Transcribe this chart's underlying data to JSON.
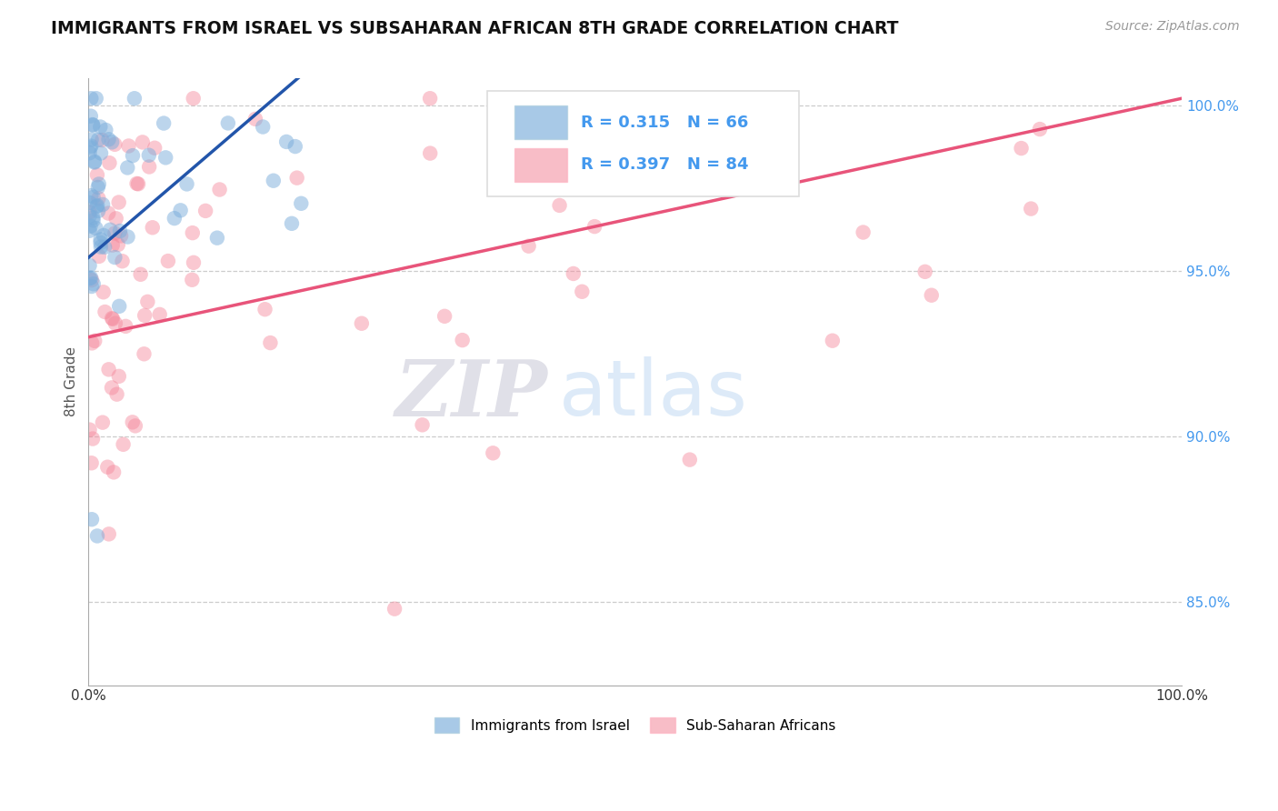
{
  "title": "IMMIGRANTS FROM ISRAEL VS SUBSAHARAN AFRICAN 8TH GRADE CORRELATION CHART",
  "source": "Source: ZipAtlas.com",
  "ylabel": "8th Grade",
  "legend_label1": "Immigrants from Israel",
  "legend_label2": "Sub-Saharan Africans",
  "R1": 0.315,
  "N1": 66,
  "R2": 0.397,
  "N2": 84,
  "blue_color": "#7AADDB",
  "pink_color": "#F4879A",
  "blue_line_color": "#2255AA",
  "pink_line_color": "#E8547A",
  "ytick_color": "#4499EE",
  "xlim": [
    0.0,
    1.0
  ],
  "ylim": [
    0.825,
    1.008
  ],
  "yticks": [
    0.85,
    0.9,
    0.95,
    1.0
  ],
  "ytick_labels": [
    "85.0%",
    "90.0%",
    "95.0%",
    "100.0%"
  ],
  "watermark_zip": "ZIP",
  "watermark_atlas": "atlas",
  "bg_color": "#FFFFFF",
  "grid_color": "#CCCCCC"
}
